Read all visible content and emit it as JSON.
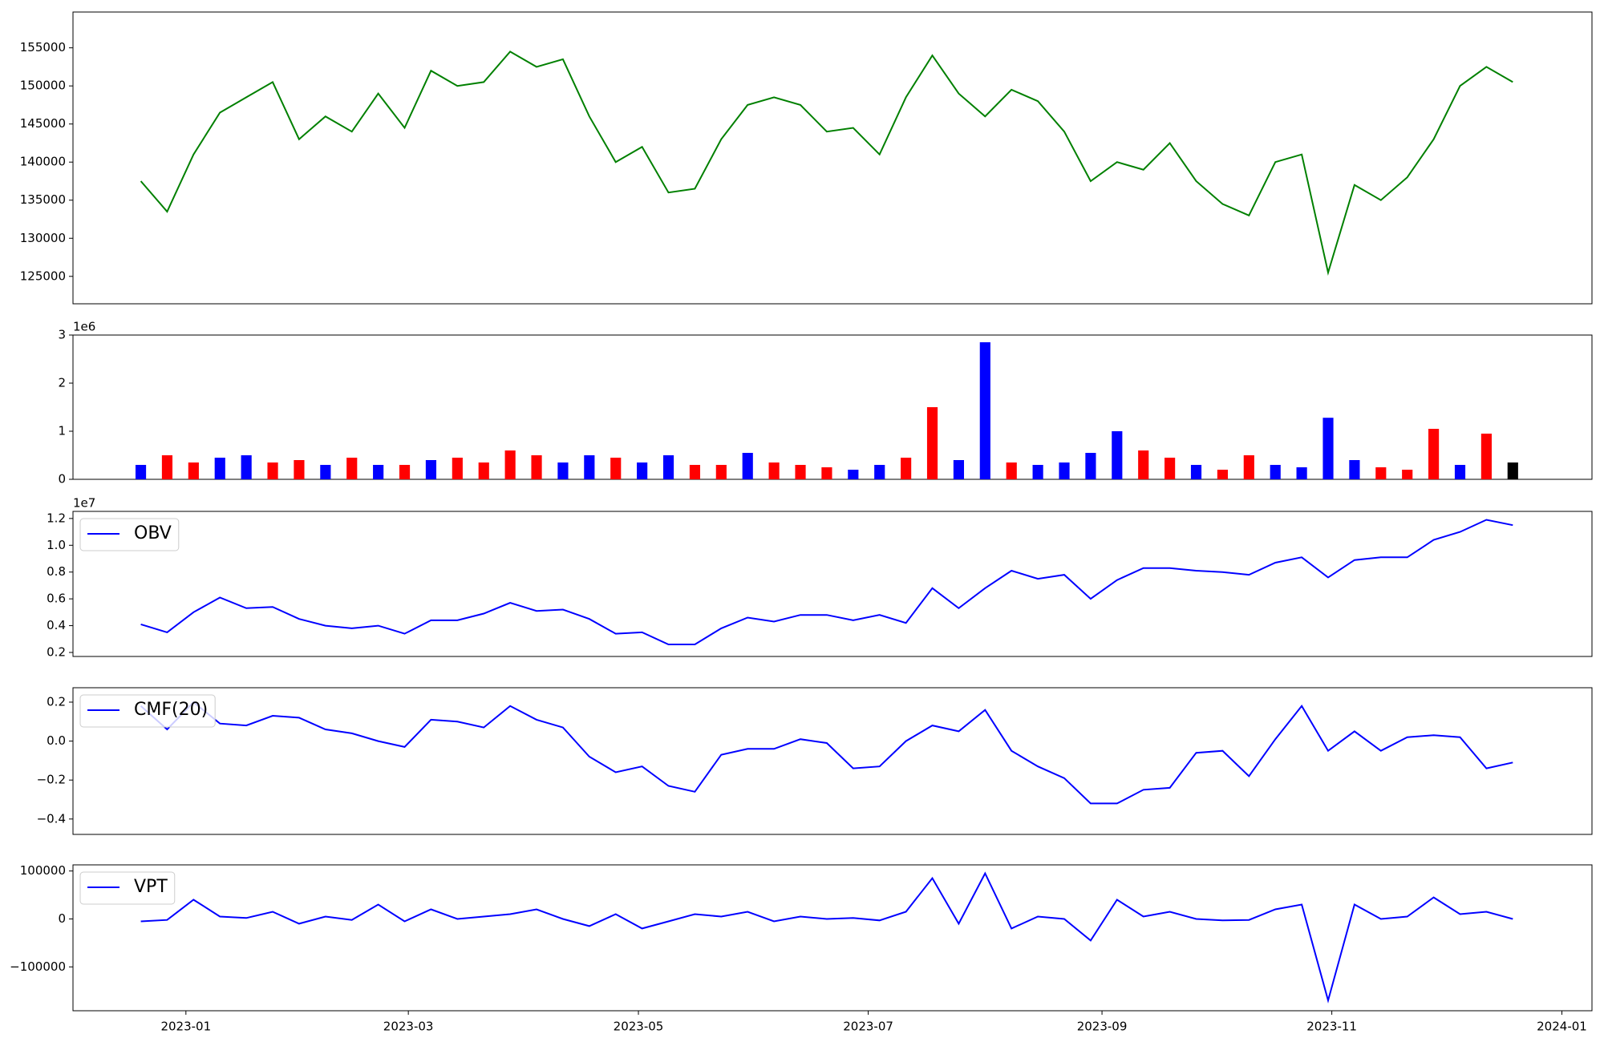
{
  "chart_data": [
    {
      "type": "line",
      "x": [
        0,
        1,
        2,
        3,
        4,
        5,
        6,
        7,
        8,
        9,
        10,
        11,
        12,
        13,
        14,
        15,
        16,
        17,
        18,
        19,
        20,
        21,
        22,
        23,
        24,
        25,
        26,
        27,
        28,
        29,
        30,
        31,
        32,
        33,
        34,
        35,
        36,
        37,
        38,
        39,
        40,
        41,
        42,
        43,
        44,
        45,
        46,
        47,
        48,
        49,
        50,
        51,
        52
      ],
      "xlim": [
        -2.57,
        55.0
      ],
      "series": [
        {
          "color": "#008000",
          "values": [
            137500,
            133500,
            141000,
            146500,
            148500,
            150500,
            143000,
            146000,
            144000,
            149000,
            144500,
            152000,
            150000,
            150500,
            154500,
            152500,
            153500,
            146000,
            140000,
            142000,
            136000,
            136500,
            143000,
            147500,
            148500,
            147500,
            144000,
            144500,
            141000,
            148500,
            154000,
            149000,
            146000,
            149500,
            148000,
            144000,
            137500,
            140000,
            139000,
            142500,
            137500,
            134500,
            133000,
            140000,
            141000,
            125500,
            137000,
            135000,
            138000,
            143000,
            150000,
            152500,
            150500
          ]
        }
      ],
      "ylim": [
        121400,
        159700
      ],
      "yticks": [
        125000,
        130000,
        135000,
        140000,
        145000,
        150000,
        155000
      ]
    },
    {
      "type": "bar",
      "x": [
        0,
        1,
        2,
        3,
        4,
        5,
        6,
        7,
        8,
        9,
        10,
        11,
        12,
        13,
        14,
        15,
        16,
        17,
        18,
        19,
        20,
        21,
        22,
        23,
        24,
        25,
        26,
        27,
        28,
        29,
        30,
        31,
        32,
        33,
        34,
        35,
        36,
        37,
        38,
        39,
        40,
        41,
        42,
        43,
        44,
        45,
        46,
        47,
        48,
        49,
        50,
        51,
        52
      ],
      "xlim": [
        -2.57,
        55.0
      ],
      "offset_text": "1e6",
      "series": [
        {
          "values": [
            0.3,
            0.5,
            0.35,
            0.45,
            0.5,
            0.35,
            0.4,
            0.3,
            0.45,
            0.3,
            0.3,
            0.4,
            0.45,
            0.35,
            0.6,
            0.5,
            0.35,
            0.5,
            0.45,
            0.35,
            0.5,
            0.3,
            0.3,
            0.55,
            0.35,
            0.3,
            0.25,
            0.2,
            0.3,
            0.45,
            1.5,
            0.4,
            2.85,
            0.35,
            0.3,
            0.35,
            0.55,
            1.0,
            0.6,
            0.45,
            0.3,
            0.2,
            0.5,
            0.3,
            0.25,
            1.28,
            0.4,
            0.25,
            0.2,
            1.05,
            0.3,
            0.95,
            0.35
          ],
          "colors": [
            "#0000ff",
            "#ff0000",
            "#ff0000",
            "#0000ff",
            "#0000ff",
            "#ff0000",
            "#ff0000",
            "#0000ff",
            "#ff0000",
            "#0000ff",
            "#ff0000",
            "#0000ff",
            "#ff0000",
            "#ff0000",
            "#ff0000",
            "#ff0000",
            "#0000ff",
            "#0000ff",
            "#ff0000",
            "#0000ff",
            "#0000ff",
            "#ff0000",
            "#ff0000",
            "#0000ff",
            "#ff0000",
            "#ff0000",
            "#ff0000",
            "#0000ff",
            "#0000ff",
            "#ff0000",
            "#ff0000",
            "#0000ff",
            "#0000ff",
            "#ff0000",
            "#0000ff",
            "#0000ff",
            "#0000ff",
            "#0000ff",
            "#ff0000",
            "#ff0000",
            "#0000ff",
            "#ff0000",
            "#ff0000",
            "#0000ff",
            "#0000ff",
            "#0000ff",
            "#0000ff",
            "#ff0000",
            "#ff0000",
            "#ff0000",
            "#0000ff",
            "#ff0000",
            "#000000"
          ]
        }
      ],
      "ylim": [
        0,
        3
      ],
      "yticks": [
        0,
        1,
        2,
        3
      ]
    },
    {
      "type": "line",
      "x": [
        0,
        1,
        2,
        3,
        4,
        5,
        6,
        7,
        8,
        9,
        10,
        11,
        12,
        13,
        14,
        15,
        16,
        17,
        18,
        19,
        20,
        21,
        22,
        23,
        24,
        25,
        26,
        27,
        28,
        29,
        30,
        31,
        32,
        33,
        34,
        35,
        36,
        37,
        38,
        39,
        40,
        41,
        42,
        43,
        44,
        45,
        46,
        47,
        48,
        49,
        50,
        51,
        52
      ],
      "xlim": [
        -2.57,
        55.0
      ],
      "offset_text": "1e7",
      "legend": "upper left",
      "series": [
        {
          "name": "OBV",
          "color": "#0000ff",
          "values": [
            0.41,
            0.35,
            0.5,
            0.61,
            0.53,
            0.54,
            0.45,
            0.4,
            0.38,
            0.4,
            0.34,
            0.44,
            0.44,
            0.49,
            0.57,
            0.51,
            0.52,
            0.45,
            0.34,
            0.35,
            0.26,
            0.26,
            0.38,
            0.46,
            0.43,
            0.48,
            0.48,
            0.44,
            0.48,
            0.42,
            0.68,
            0.53,
            0.68,
            0.81,
            0.75,
            0.78,
            0.6,
            0.74,
            0.83,
            0.83,
            0.81,
            0.8,
            0.78,
            0.87,
            0.91,
            0.76,
            0.89,
            0.91,
            0.91,
            1.04,
            1.1,
            1.19,
            1.15
          ]
        }
      ],
      "ylim": [
        0.17,
        1.253
      ],
      "yticks": [
        0.2,
        0.4,
        0.6,
        0.8,
        {
          "value": 1.0,
          "label": "1.0"
        },
        1.2
      ]
    },
    {
      "type": "line",
      "x": [
        0,
        1,
        2,
        3,
        4,
        5,
        6,
        7,
        8,
        9,
        10,
        11,
        12,
        13,
        14,
        15,
        16,
        17,
        18,
        19,
        20,
        21,
        22,
        23,
        24,
        25,
        26,
        27,
        28,
        29,
        30,
        31,
        32,
        33,
        34,
        35,
        36,
        37,
        38,
        39,
        40,
        41,
        42,
        43,
        44,
        45,
        46,
        47,
        48,
        49,
        50,
        51,
        52
      ],
      "xlim": [
        -2.57,
        55.0
      ],
      "legend": "upper left",
      "series": [
        {
          "name": "CMF(20)",
          "color": "#0000ff",
          "values": [
            0.18,
            0.06,
            0.2,
            0.09,
            0.08,
            0.13,
            0.12,
            0.06,
            0.04,
            0.0,
            -0.03,
            0.11,
            0.1,
            0.07,
            0.18,
            0.11,
            0.07,
            -0.08,
            -0.16,
            -0.13,
            -0.23,
            -0.26,
            -0.07,
            -0.04,
            -0.04,
            0.01,
            -0.01,
            -0.14,
            -0.13,
            0.0,
            0.08,
            0.05,
            0.16,
            -0.05,
            -0.13,
            -0.19,
            -0.32,
            -0.32,
            -0.25,
            -0.24,
            -0.06,
            -0.05,
            -0.18,
            0.01,
            0.18,
            -0.05,
            0.05,
            -0.05,
            0.02,
            0.03,
            0.02,
            -0.14,
            -0.11
          ]
        }
      ],
      "ylim": [
        -0.479,
        0.274
      ],
      "yticks": [
        {
          "value": -0.4,
          "label": "−0.4"
        },
        {
          "value": -0.2,
          "label": "−0.2"
        },
        {
          "value": 0,
          "label": "0.0"
        },
        0.2
      ]
    },
    {
      "type": "line",
      "x": [
        0,
        1,
        2,
        3,
        4,
        5,
        6,
        7,
        8,
        9,
        10,
        11,
        12,
        13,
        14,
        15,
        16,
        17,
        18,
        19,
        20,
        21,
        22,
        23,
        24,
        25,
        26,
        27,
        28,
        29,
        30,
        31,
        32,
        33,
        34,
        35,
        36,
        37,
        38,
        39,
        40,
        41,
        42,
        43,
        44,
        45,
        46,
        47,
        48,
        49,
        50,
        51,
        52
      ],
      "xlim": [
        -2.57,
        55.0
      ],
      "legend": "upper left",
      "series": [
        {
          "name": "VPT",
          "color": "#0000ff",
          "values": [
            -5000,
            -2000,
            40000,
            5000,
            2000,
            15000,
            -10000,
            5000,
            -2000,
            30000,
            -5000,
            20000,
            0,
            5000,
            10000,
            20000,
            0,
            -15000,
            10000,
            -20000,
            -5000,
            10000,
            5000,
            15000,
            -5000,
            5000,
            0,
            2000,
            -3000,
            15000,
            85000,
            -10000,
            95000,
            -20000,
            5000,
            0,
            -45000,
            40000,
            5000,
            15000,
            0,
            -3000,
            -2000,
            20000,
            30000,
            -170000,
            30000,
            0,
            5000,
            45000,
            10000,
            15000,
            0
          ]
        }
      ],
      "ylim": [
        -191500,
        112800
      ],
      "yticks": [
        {
          "value": -100000,
          "label": "−100000"
        },
        0,
        100000
      ],
      "xticks": [
        {
          "value": 1.71,
          "label": "2023-01"
        },
        {
          "value": 10.14,
          "label": "2023-03"
        },
        {
          "value": 18.86,
          "label": "2023-05"
        },
        {
          "value": 27.57,
          "label": "2023-07"
        },
        {
          "value": 36.43,
          "label": "2023-09"
        },
        {
          "value": 45.14,
          "label": "2023-11"
        },
        {
          "value": 53.86,
          "label": "2024-01"
        }
      ]
    }
  ]
}
